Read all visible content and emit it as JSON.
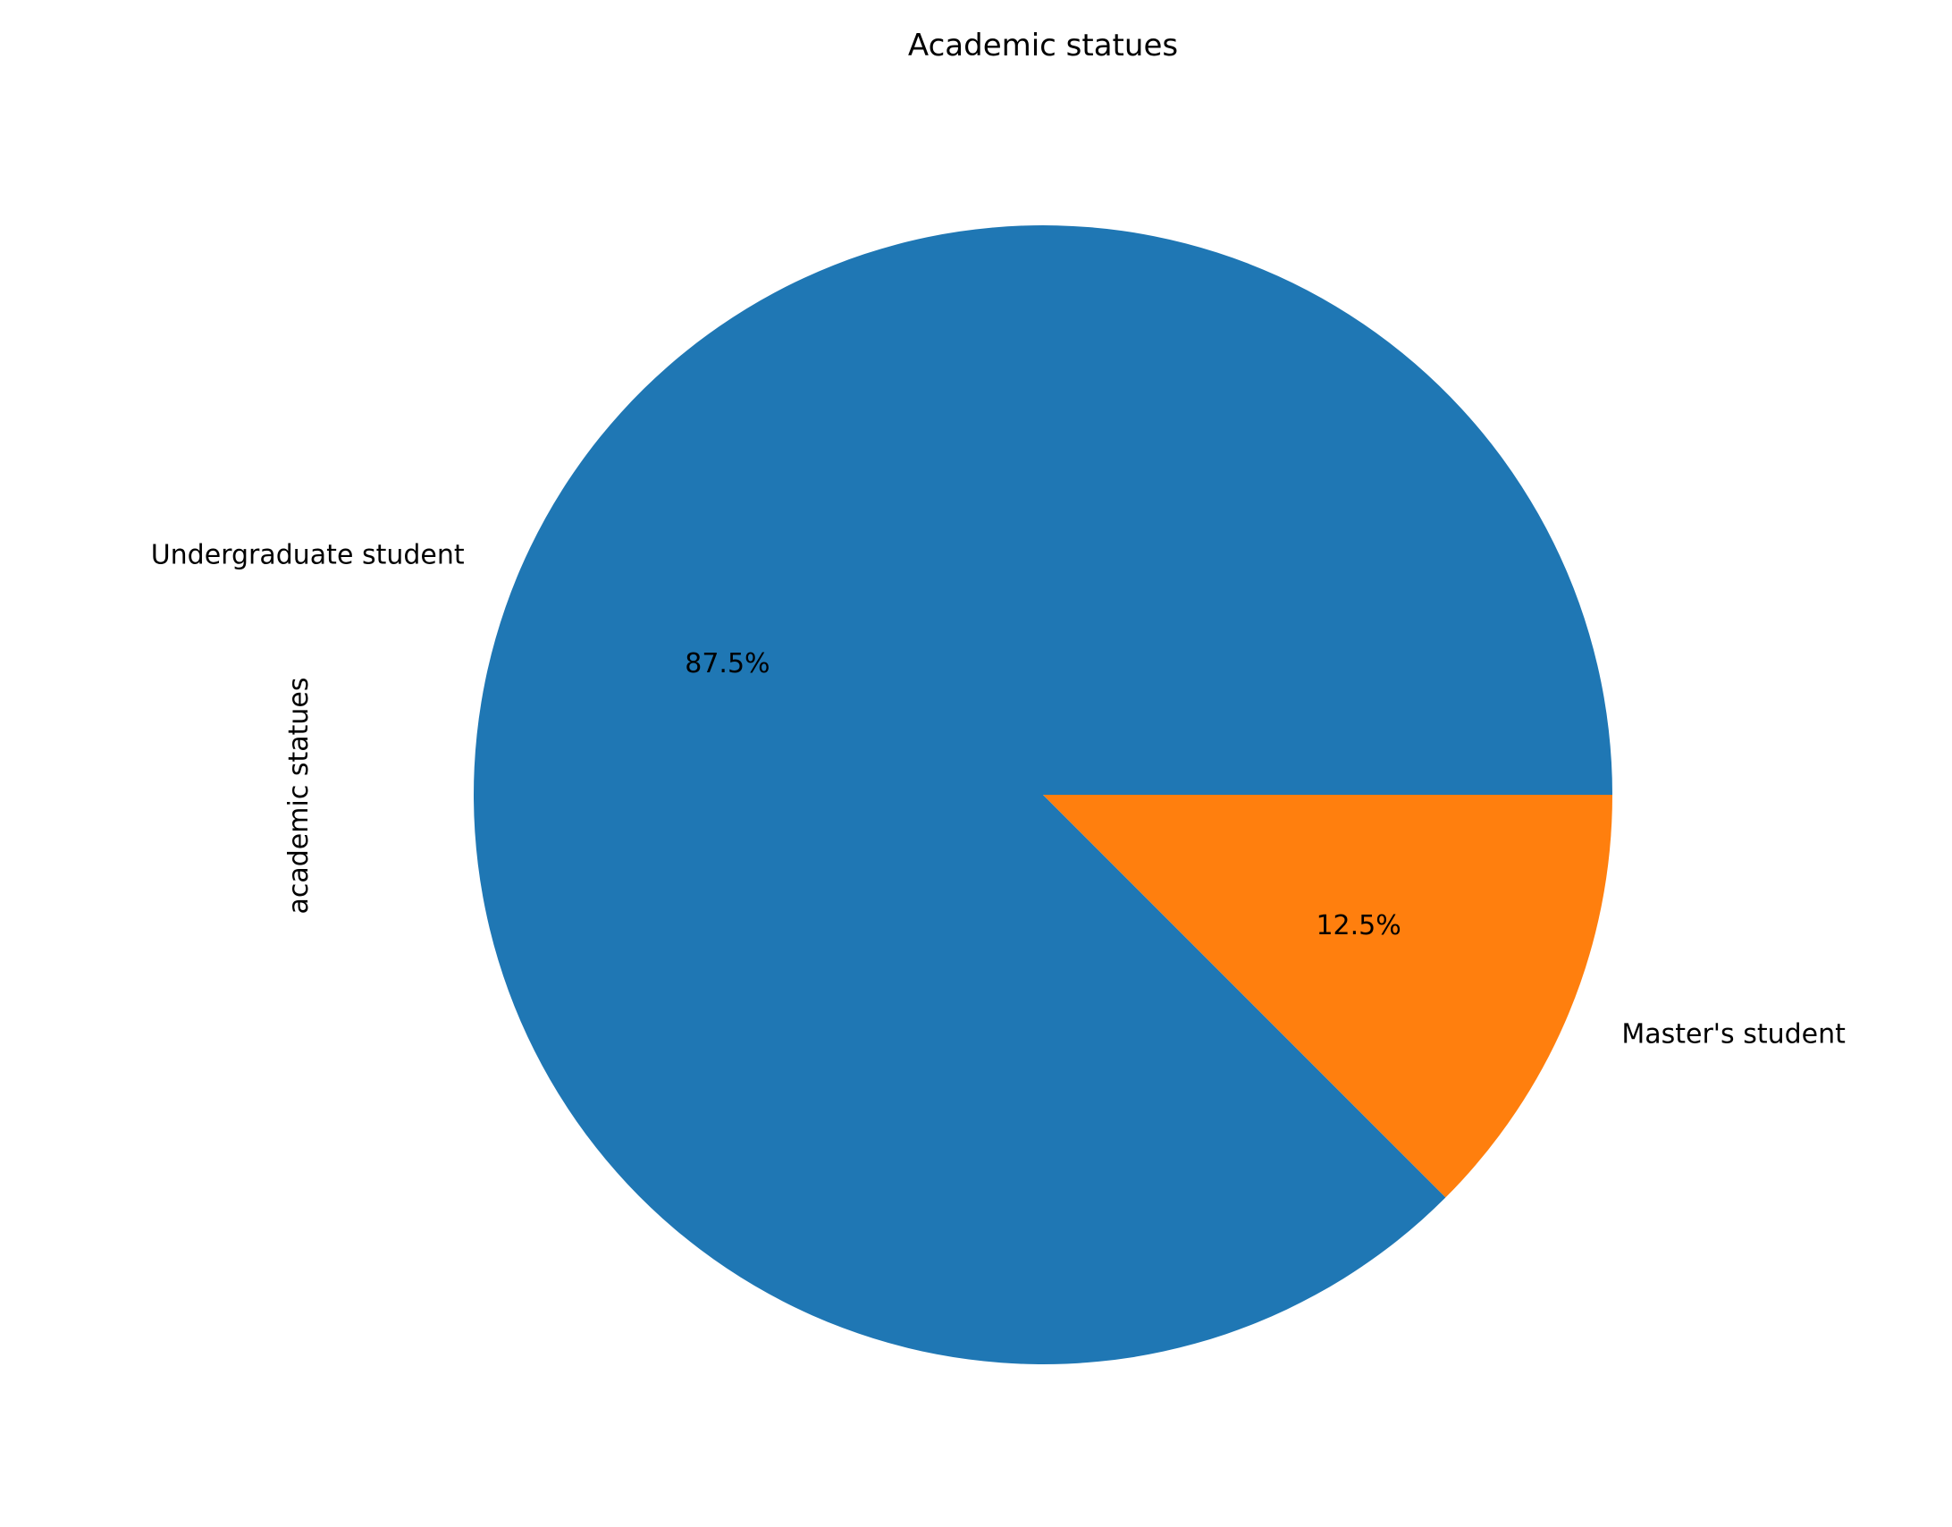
{
  "chart_data": {
    "type": "pie",
    "title": "Academic statues",
    "ylabel": "academic statues",
    "xlabel": "",
    "slices": [
      {
        "label": "Undergraduate student",
        "value": 87.5,
        "pct_label": "87.5%",
        "color": "#1f77b4"
      },
      {
        "label": "Master's student",
        "value": 12.5,
        "pct_label": "12.5%",
        "color": "#ff7f0e"
      }
    ],
    "start_angle_deg": 0,
    "direction": "counterclockwise",
    "legend": "none"
  }
}
